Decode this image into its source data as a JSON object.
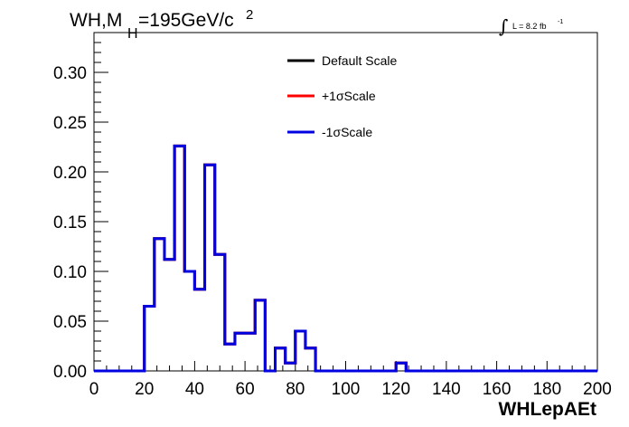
{
  "chart_data": {
    "type": "step-histogram",
    "title_parts": {
      "main": "WH,M",
      "sub": "H",
      "rest": "=195GeV/c",
      "sup": "2"
    },
    "lumi_parts": {
      "integral": "∫",
      "text": "L = 8.2 fb",
      "sup": "-1"
    },
    "xlabel": "WHLepAEt",
    "ylabel": "",
    "xlim": [
      0,
      200
    ],
    "ylim": [
      0,
      0.34
    ],
    "x_ticks": [
      "0",
      "20",
      "40",
      "60",
      "80",
      "100",
      "120",
      "140",
      "160",
      "180",
      "200"
    ],
    "y_ticks": [
      "0.00",
      "0.05",
      "0.10",
      "0.15",
      "0.20",
      "0.25",
      "0.30"
    ],
    "bin_width": 4,
    "x_start": 0,
    "series": [
      {
        "name": "Default Scale",
        "color": "#000000",
        "values": [
          0,
          0,
          0,
          0,
          0,
          0.065,
          0.133,
          0.112,
          0.226,
          0.1,
          0.082,
          0.207,
          0.117,
          0.027,
          0.038,
          0.038,
          0.071,
          0,
          0.023,
          0.008,
          0.04,
          0.023,
          0,
          0,
          0,
          0,
          0,
          0,
          0,
          0,
          0.008,
          0,
          0,
          0,
          0,
          0,
          0,
          0,
          0,
          0,
          0,
          0,
          0,
          0,
          0,
          0,
          0,
          0,
          0,
          0
        ]
      },
      {
        "name": "+1σScale",
        "color": "#ff0000",
        "values": [
          0,
          0,
          0,
          0,
          0,
          0.065,
          0.133,
          0.112,
          0.226,
          0.1,
          0.082,
          0.207,
          0.117,
          0.027,
          0.038,
          0.038,
          0.071,
          0,
          0.023,
          0.008,
          0.04,
          0.023,
          0,
          0,
          0,
          0,
          0,
          0,
          0,
          0,
          0.008,
          0,
          0,
          0,
          0,
          0,
          0,
          0,
          0,
          0,
          0,
          0,
          0,
          0,
          0,
          0,
          0,
          0,
          0,
          0
        ]
      },
      {
        "name": "-1σScale",
        "color": "#0000e0",
        "values": [
          0,
          0,
          0,
          0,
          0,
          0.065,
          0.133,
          0.112,
          0.226,
          0.1,
          0.082,
          0.207,
          0.117,
          0.027,
          0.038,
          0.038,
          0.071,
          0,
          0.023,
          0.008,
          0.04,
          0.023,
          0,
          0,
          0,
          0,
          0,
          0,
          0,
          0,
          0.008,
          0,
          0,
          0,
          0,
          0,
          0,
          0,
          0,
          0,
          0,
          0,
          0,
          0,
          0,
          0,
          0,
          0,
          0,
          0
        ]
      }
    ],
    "legend": [
      {
        "label": "Default Scale",
        "color": "#000000"
      },
      {
        "label": "+1σScale",
        "color": "#ff0000"
      },
      {
        "label": "-1σScale",
        "color": "#0000e0"
      }
    ],
    "grid": false,
    "legend_position": "top-center"
  }
}
